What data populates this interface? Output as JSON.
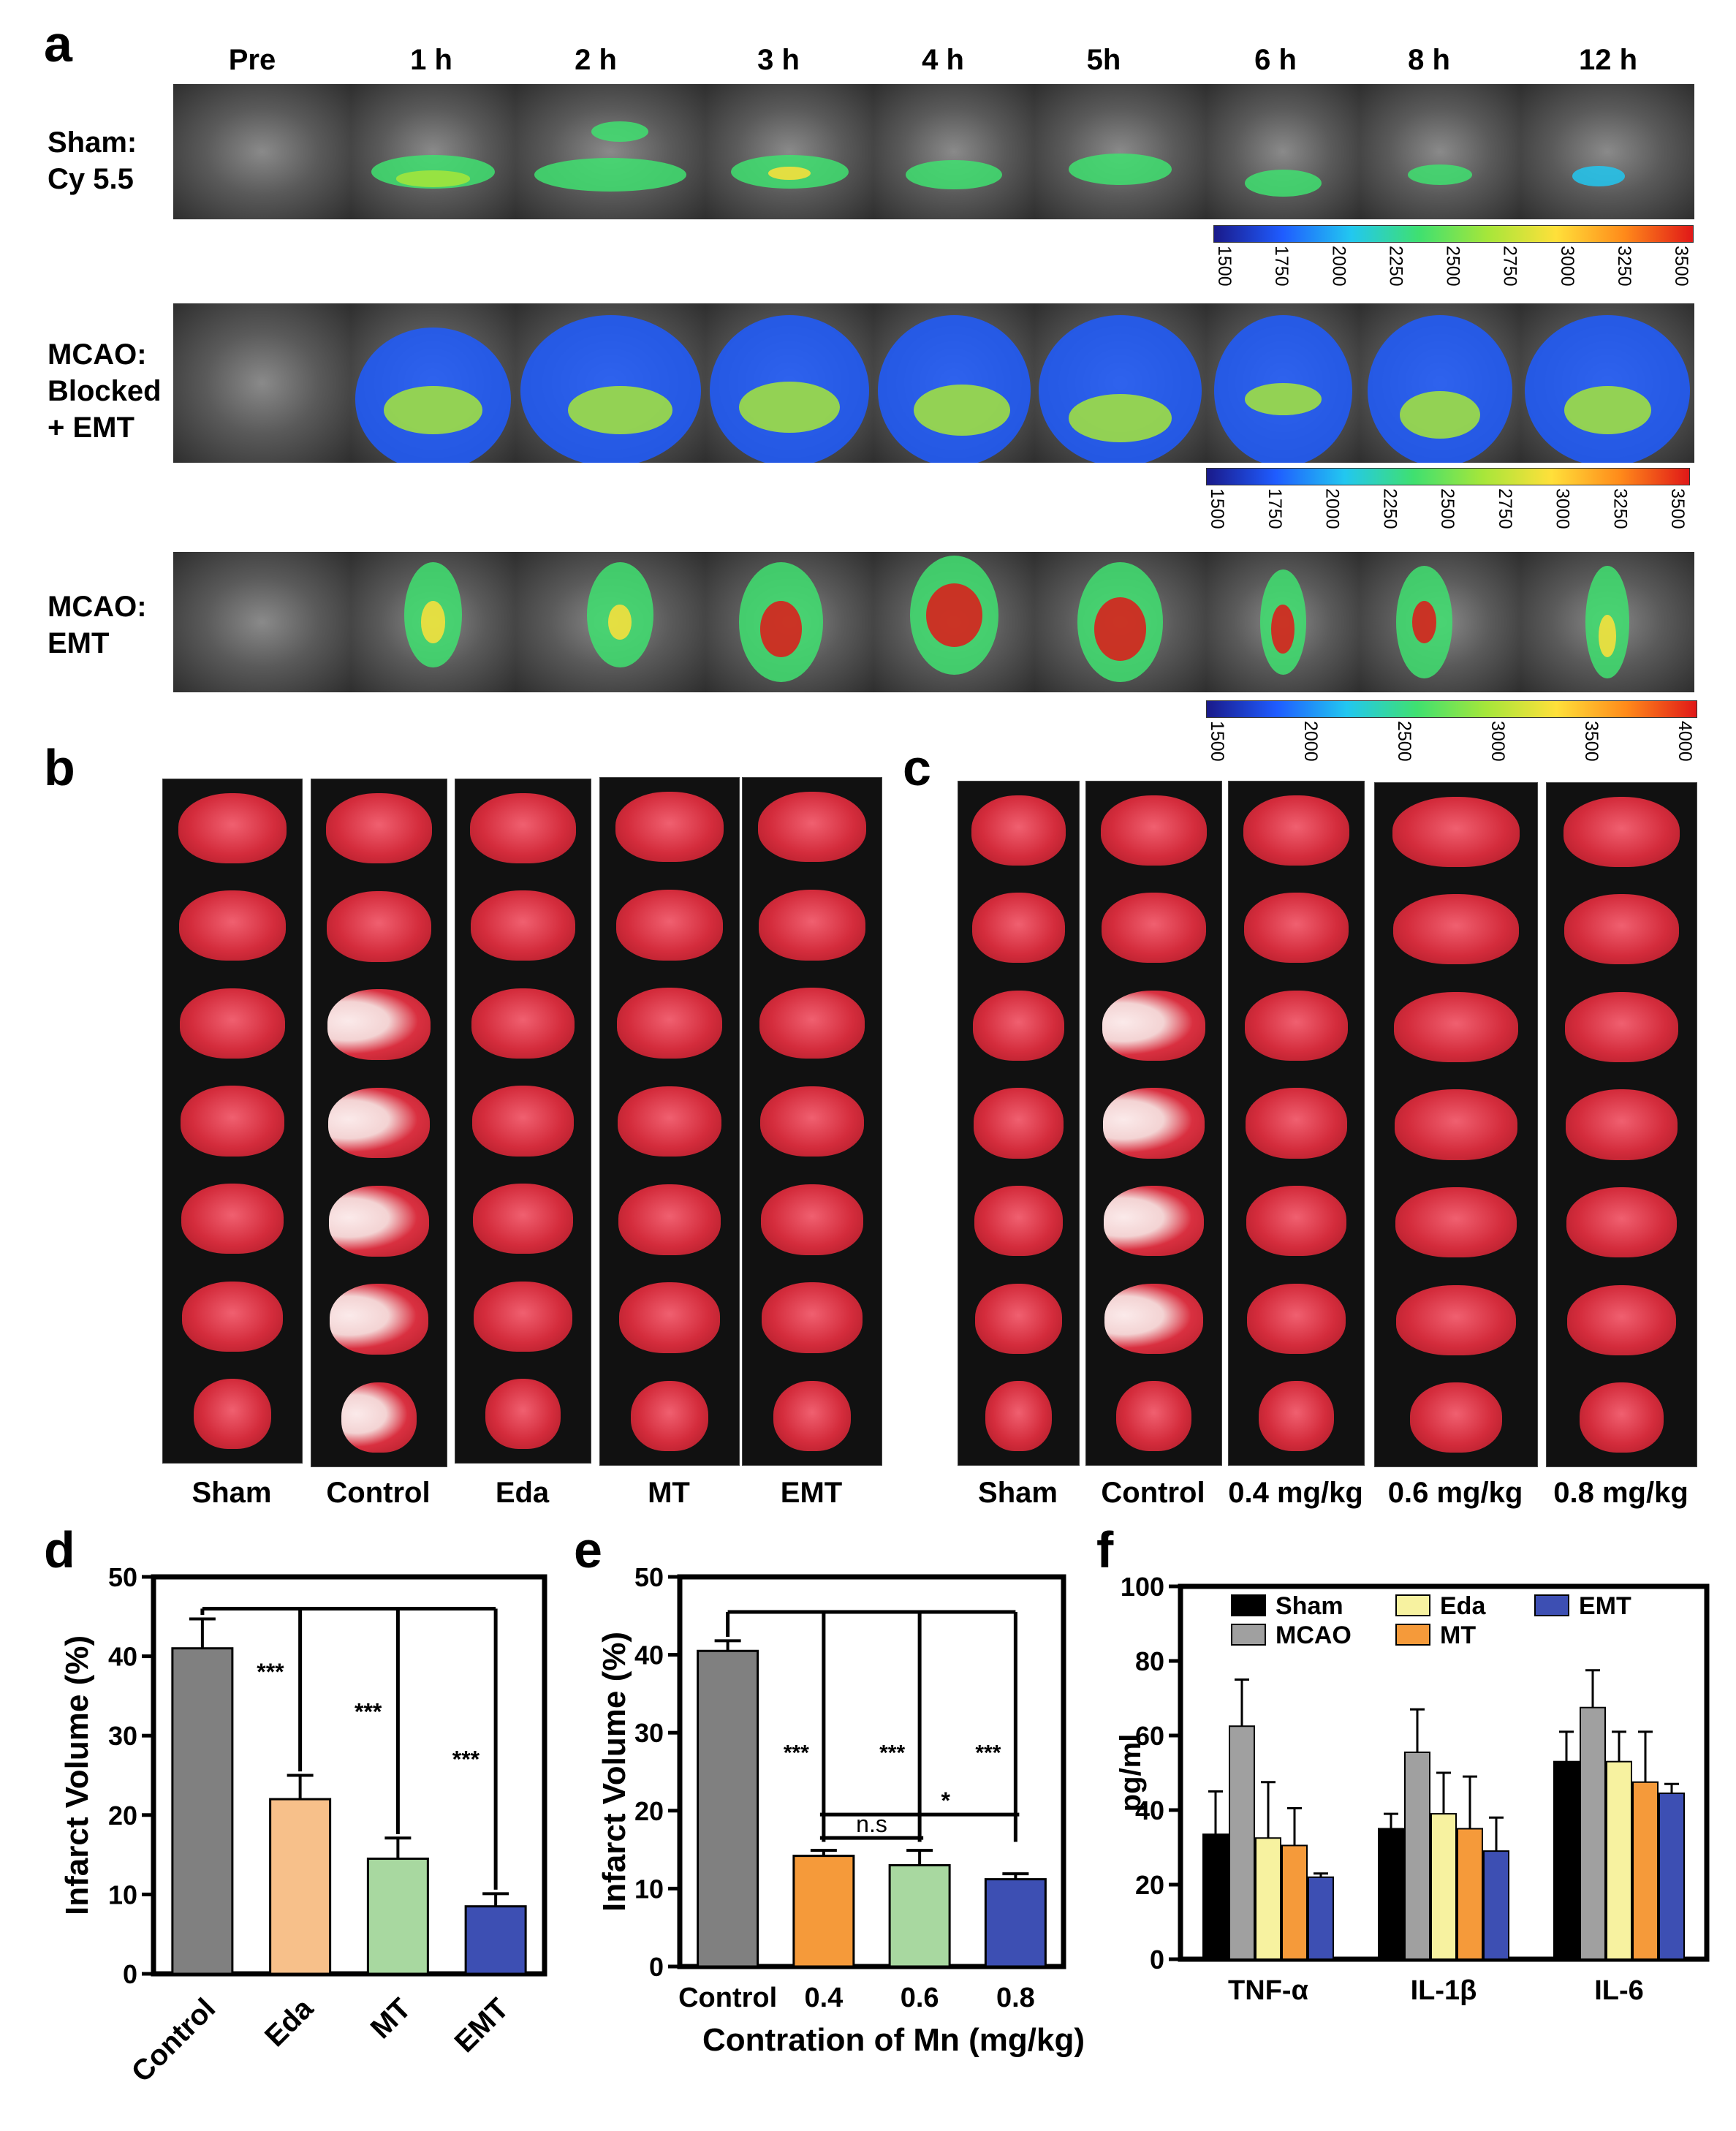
{
  "panel_a": {
    "label": "a",
    "timepoints": [
      "Pre",
      "1 h",
      "2 h",
      "3 h",
      "4 h",
      "5h",
      "6 h",
      "8 h",
      "12 h"
    ],
    "rows": [
      {
        "lines": [
          "Sham:",
          "Cy 5.5"
        ],
        "scale": [
          "1500",
          "1750",
          "2000",
          "2250",
          "2500",
          "2750",
          "3000",
          "3250",
          "3500"
        ]
      },
      {
        "lines": [
          "MCAO:",
          "Blocked",
          "+ EMT"
        ],
        "scale": [
          "1500",
          "1750",
          "2000",
          "2250",
          "2500",
          "2750",
          "3000",
          "3250",
          "3500"
        ]
      },
      {
        "lines": [
          "MCAO:",
          "EMT"
        ],
        "scale": [
          "1500",
          "2000",
          "2500",
          "3000",
          "3500",
          "4000"
        ]
      }
    ]
  },
  "panel_b": {
    "label": "b",
    "groups": [
      "Sham",
      "Control",
      "Eda",
      "MT",
      "EMT"
    ]
  },
  "panel_c": {
    "label": "c",
    "groups": [
      "Sham",
      "Control",
      "0.4 mg/kg",
      "0.6 mg/kg",
      "0.8 mg/kg"
    ]
  },
  "chart_data": [
    {
      "id": "d",
      "type": "bar",
      "label": "d",
      "categories": [
        "Control",
        "Eda",
        "MT",
        "EMT"
      ],
      "values": [
        41,
        22,
        14.5,
        8.5
      ],
      "errors": [
        3.7,
        3.0,
        2.6,
        1.6
      ],
      "colors": [
        "#808080",
        "#f7c08a",
        "#a8d8a0",
        "#3d4fb3"
      ],
      "ylabel": "Infarct Volume (%)",
      "xlabel": "",
      "ylim": [
        0,
        50
      ],
      "yticks": [
        "0",
        "10",
        "20",
        "30",
        "40",
        "50"
      ],
      "sig": [
        "***",
        "***",
        "***"
      ]
    },
    {
      "id": "e",
      "type": "bar",
      "label": "e",
      "categories": [
        "Control",
        "0.4",
        "0.6",
        "0.8"
      ],
      "values": [
        40.5,
        14.2,
        13,
        11.2
      ],
      "errors": [
        1.3,
        0.7,
        1.9,
        0.7
      ],
      "colors": [
        "#808080",
        "#f59a3a",
        "#a8d8a0",
        "#3d4fb3"
      ],
      "ylabel": "Infarct Volume (%)",
      "xlabel": "Contration of Mn (mg/kg)",
      "ylim": [
        0,
        50
      ],
      "yticks": [
        "0",
        "10",
        "20",
        "30",
        "40",
        "50"
      ],
      "sig": [
        "***",
        "***",
        "***",
        "n.s",
        "*"
      ]
    },
    {
      "id": "f",
      "type": "bar",
      "label": "f",
      "categories": [
        "TNF-α",
        "IL-1β",
        "IL-6"
      ],
      "series": [
        {
          "name": "Sham",
          "color": "#000000",
          "values": [
            33.5,
            35,
            53
          ],
          "errors": [
            11.5,
            4,
            8
          ]
        },
        {
          "name": "MCAO",
          "color": "#a0a0a0",
          "values": [
            62.5,
            55.5,
            67.5
          ],
          "errors": [
            12.5,
            11.5,
            10
          ]
        },
        {
          "name": "Eda",
          "color": "#f7f2a0",
          "values": [
            32.5,
            39,
            53
          ],
          "errors": [
            15,
            11,
            8
          ]
        },
        {
          "name": "MT",
          "color": "#f59a3a",
          "values": [
            30.5,
            35,
            47.5
          ],
          "errors": [
            10,
            14,
            13.5
          ]
        },
        {
          "name": "EMT",
          "color": "#3d4fb3",
          "values": [
            22,
            29,
            44.5
          ],
          "errors": [
            1,
            9,
            2.5
          ]
        }
      ],
      "ylabel": "pg/ml",
      "xlabel": "",
      "ylim": [
        0,
        100
      ],
      "yticks": [
        "0",
        "20",
        "40",
        "60",
        "80",
        "100"
      ]
    }
  ]
}
